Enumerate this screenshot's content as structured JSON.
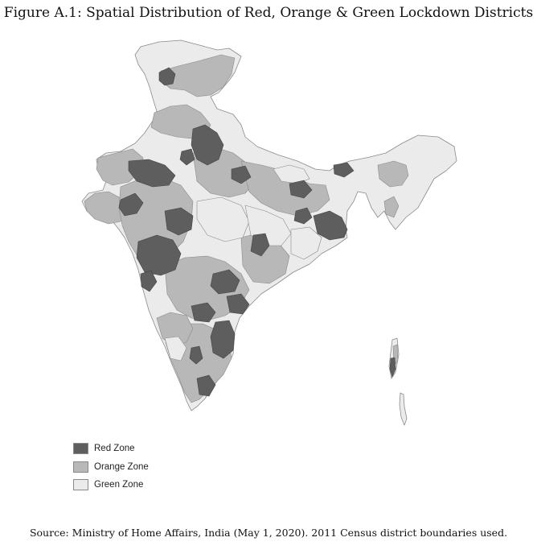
{
  "title": "Figure A.1: Spatial Distribution of Red, Orange & Green Lockdown Districts",
  "source": "Source: Ministry of Home Affairs, India (May 1, 2020). 2011 Census district boundaries used.",
  "colors": {
    "red_zone": "#5e5e5e",
    "orange_zone": "#b8b8b8",
    "green_zone": "#ebebeb",
    "border": "#8a8a8a"
  },
  "legend": {
    "items": [
      {
        "label": "Red Zone",
        "color": "#5e5e5e"
      },
      {
        "label": "Orange Zone",
        "color": "#b8b8b8"
      },
      {
        "label": "Green Zone",
        "color": "#ebebeb"
      }
    ]
  }
}
